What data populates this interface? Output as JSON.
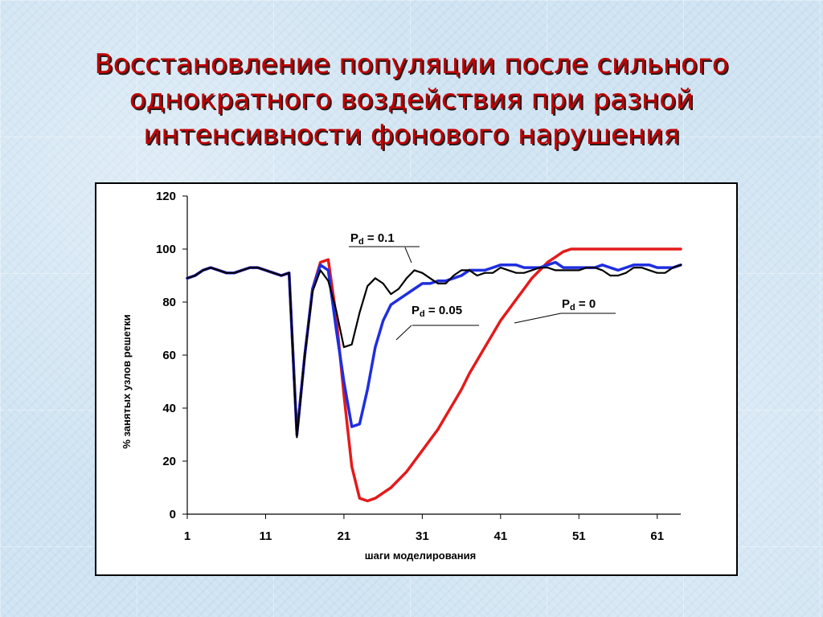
{
  "slide": {
    "title": "Восстановление популяции после сильного однократного воздействия при разной интенсивности фонового нарушения",
    "title_color": "#c00000"
  },
  "chart_data": {
    "type": "line",
    "xlabel": "шаги моделирования",
    "ylabel": "% занятых узлов решетки",
    "xlim": [
      1,
      64
    ],
    "ylim": [
      0,
      120
    ],
    "x_ticks": [
      1,
      11,
      21,
      31,
      41,
      51,
      61
    ],
    "y_ticks": [
      0,
      20,
      40,
      60,
      80,
      100,
      120
    ],
    "grid": false,
    "annotations": [
      {
        "label_main": "P",
        "label_sub": "d",
        "label_rest": " = 0.1",
        "series": "black"
      },
      {
        "label_main": "P",
        "label_sub": "d",
        "label_rest": " = 0.05",
        "series": "blue"
      },
      {
        "label_main": "P",
        "label_sub": "d",
        "label_rest": " = 0",
        "series": "red"
      }
    ],
    "series": [
      {
        "key": "red",
        "color": "#e41a1c",
        "x": [
          1,
          2,
          3,
          4,
          5,
          6,
          7,
          8,
          9,
          10,
          11,
          12,
          13,
          14,
          15,
          16,
          17,
          18,
          19,
          20,
          21,
          22,
          23,
          24,
          25,
          26,
          27,
          28,
          29,
          30,
          31,
          32,
          33,
          34,
          35,
          36,
          37,
          38,
          39,
          40,
          41,
          42,
          43,
          44,
          45,
          46,
          47,
          48,
          49,
          50,
          51,
          52,
          53,
          54,
          55,
          56,
          57,
          58,
          59,
          60,
          61,
          62,
          63,
          64
        ],
        "values": [
          89,
          90,
          92,
          93,
          92,
          91,
          91,
          92,
          93,
          93,
          92,
          91,
          90,
          91,
          30,
          60,
          85,
          95,
          96,
          75,
          45,
          18,
          6,
          5,
          6,
          8,
          10,
          13,
          16,
          20,
          24,
          28,
          32,
          37,
          42,
          47,
          53,
          58,
          63,
          68,
          73,
          77,
          81,
          85,
          89,
          92,
          95,
          97,
          99,
          100,
          100,
          100,
          100,
          100,
          100,
          100,
          100,
          100,
          100,
          100,
          100,
          100,
          100,
          100
        ]
      },
      {
        "key": "blue",
        "color": "#1f2ee0",
        "x": [
          1,
          2,
          3,
          4,
          5,
          6,
          7,
          8,
          9,
          10,
          11,
          12,
          13,
          14,
          15,
          16,
          17,
          18,
          19,
          20,
          21,
          22,
          23,
          24,
          25,
          26,
          27,
          28,
          29,
          30,
          31,
          32,
          33,
          34,
          35,
          36,
          37,
          38,
          39,
          40,
          41,
          42,
          43,
          44,
          45,
          46,
          47,
          48,
          49,
          50,
          51,
          52,
          53,
          54,
          55,
          56,
          57,
          58,
          59,
          60,
          61,
          62,
          63,
          64
        ],
        "values": [
          89,
          90,
          92,
          93,
          92,
          91,
          91,
          92,
          93,
          93,
          92,
          91,
          90,
          91,
          30,
          60,
          85,
          94,
          92,
          70,
          50,
          33,
          34,
          47,
          63,
          73,
          79,
          81,
          83,
          85,
          87,
          87,
          88,
          88,
          89,
          90,
          92,
          92,
          92,
          93,
          94,
          94,
          94,
          93,
          93,
          93,
          94,
          95,
          93,
          93,
          93,
          93,
          93,
          94,
          93,
          92,
          93,
          94,
          94,
          94,
          93,
          93,
          93,
          94
        ]
      },
      {
        "key": "black",
        "color": "#000000",
        "x": [
          1,
          2,
          3,
          4,
          5,
          6,
          7,
          8,
          9,
          10,
          11,
          12,
          13,
          14,
          15,
          16,
          17,
          18,
          19,
          20,
          21,
          22,
          23,
          24,
          25,
          26,
          27,
          28,
          29,
          30,
          31,
          32,
          33,
          34,
          35,
          36,
          37,
          38,
          39,
          40,
          41,
          42,
          43,
          44,
          45,
          46,
          47,
          48,
          49,
          50,
          51,
          52,
          53,
          54,
          55,
          56,
          57,
          58,
          59,
          60,
          61,
          62,
          63,
          64
        ],
        "values": [
          89,
          90,
          92,
          93,
          92,
          91,
          91,
          92,
          93,
          93,
          92,
          91,
          90,
          91,
          29,
          60,
          84,
          92,
          88,
          77,
          63,
          64,
          76,
          86,
          89,
          87,
          83,
          85,
          89,
          92,
          91,
          89,
          87,
          87,
          90,
          92,
          92,
          90,
          91,
          91,
          93,
          92,
          91,
          91,
          92,
          93,
          93,
          92,
          92,
          92,
          92,
          93,
          93,
          92,
          90,
          90,
          91,
          93,
          93,
          92,
          91,
          91,
          93,
          94
        ]
      }
    ]
  }
}
